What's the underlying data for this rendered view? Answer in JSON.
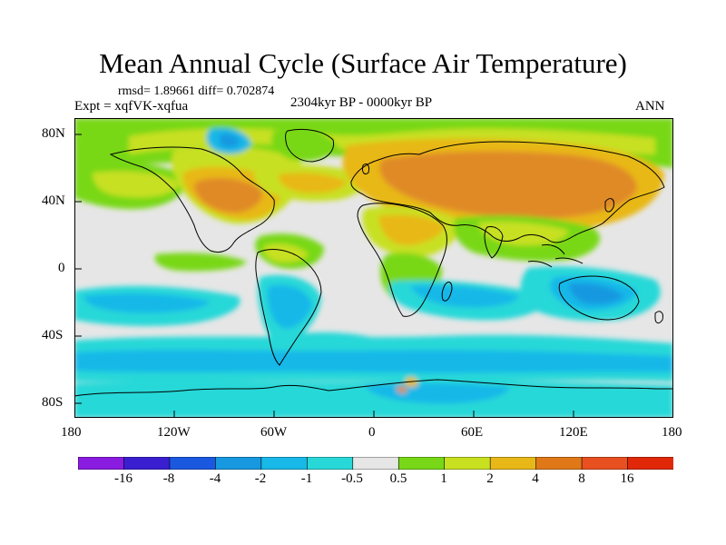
{
  "header": {
    "title": "Mean Annual Cycle (Surface Air Temperature)",
    "stats": "rmsd= 1.89661 diff= 0.702874",
    "experiment": "Expt = xqfVK-xqfua",
    "period": "2304kyr BP - 0000kyr BP",
    "season": "ANN"
  },
  "axes": {
    "x_ticks": [
      "180",
      "120W",
      "60W",
      "0",
      "60E",
      "120E",
      "180"
    ],
    "y_ticks": [
      "80N",
      "40N",
      "0",
      "40S",
      "80S"
    ]
  },
  "colorbar": {
    "labels": [
      "-16",
      "-8",
      "-4",
      "-2",
      "-1",
      "-0.5",
      "0.5",
      "1",
      "2",
      "4",
      "8",
      "16"
    ],
    "colors": [
      "#8a1be0",
      "#3a1fd0",
      "#1a58e0",
      "#1898e0",
      "#18b8e8",
      "#28d8d8",
      "#e6e6e6",
      "#78d818",
      "#c8e020",
      "#e8b818",
      "#e07818",
      "#e85020",
      "#e02808"
    ]
  },
  "palette": {
    "background_zero": "#e6e6e6",
    "warm_strong": "#e08a28",
    "warm": "#e8b818",
    "mild_warm": "#c8e020",
    "slight_warm": "#78d818",
    "slight_cool": "#28d8d8",
    "cool": "#18b8e8",
    "cold": "#1898e0",
    "coastline": "#000000"
  }
}
